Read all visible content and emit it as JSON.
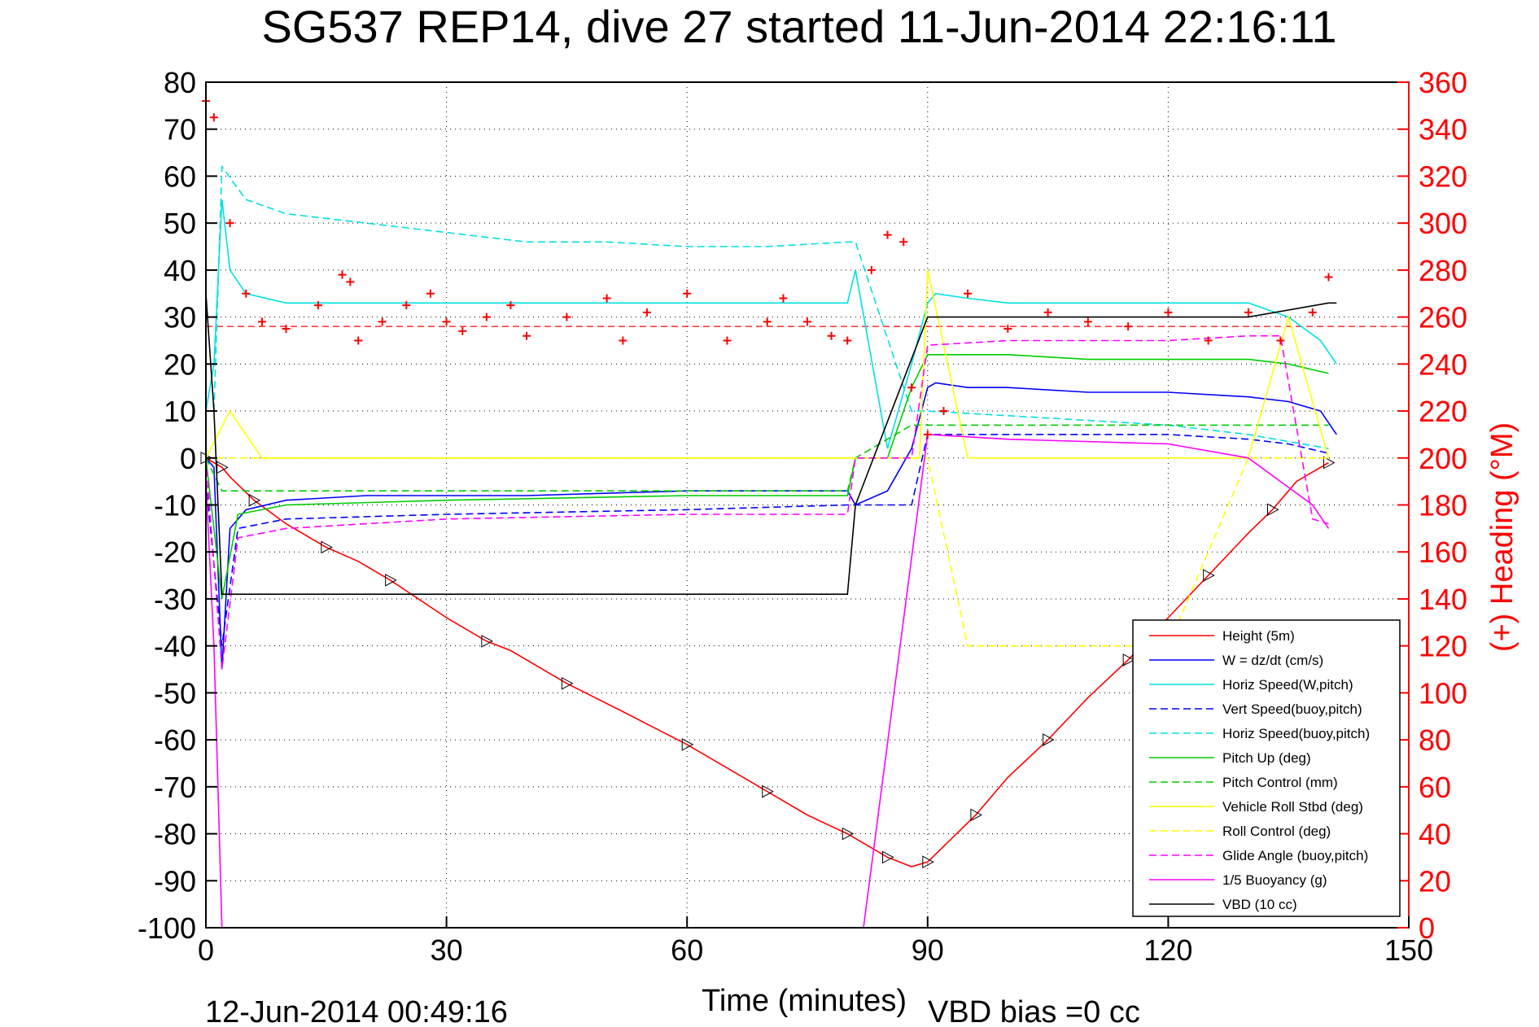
{
  "chart_data": {
    "type": "line",
    "title": "SG537 REP14, dive 27 started 11-Jun-2014 22:16:11",
    "xlabel": "Time (minutes)",
    "ylabel_right": "(+) Heading (°M)",
    "end_time_label": "12-Jun-2014 00:49:16",
    "vbd_bias_label": "VBD bias =0 cc",
    "xlim": [
      0,
      150
    ],
    "ylim": [
      -100,
      80
    ],
    "y2lim": [
      0,
      360
    ],
    "x_ticks": [
      0,
      30,
      60,
      90,
      120,
      150
    ],
    "y_ticks": [
      -100,
      -90,
      -80,
      -70,
      -60,
      -50,
      -40,
      -30,
      -20,
      -10,
      0,
      10,
      20,
      30,
      40,
      50,
      60,
      70,
      80
    ],
    "y2_ticks": [
      0,
      20,
      40,
      60,
      80,
      100,
      120,
      140,
      160,
      180,
      200,
      220,
      240,
      260,
      280,
      300,
      320,
      340,
      360
    ],
    "grid": true,
    "legend_position": "bottom-right",
    "colors": {
      "heading": "#ff0000",
      "right_axis": "#ff0000",
      "grid": "#000000"
    },
    "heading_reference_left_units": 28,
    "series": [
      {
        "name": "Height (5m)",
        "color": "#ff0000",
        "style": "solid",
        "x": [
          0,
          1,
          2,
          3,
          6,
          10,
          15,
          19,
          23,
          30,
          35,
          38,
          45,
          52,
          60,
          65,
          70,
          75,
          80,
          82,
          85,
          88,
          90,
          93,
          96,
          100,
          105,
          110,
          115,
          120,
          125,
          130,
          133,
          136,
          140
        ],
        "values": [
          0,
          -1,
          -2,
          -4,
          -9,
          -14,
          -19,
          -22,
          -26,
          -34,
          -39,
          -41,
          -48,
          -54,
          -61,
          -66,
          -71,
          -76,
          -80,
          -82,
          -85,
          -87,
          -86,
          -81,
          -76,
          -68,
          -60,
          -51,
          -43,
          -34,
          -25,
          -16,
          -11,
          -5,
          -1
        ]
      },
      {
        "name": "W = dz/dt (cm/s)",
        "color": "#0000ff",
        "style": "solid",
        "x": [
          0,
          1,
          2,
          3,
          5,
          10,
          20,
          40,
          60,
          80,
          81,
          85,
          88,
          90,
          91,
          95,
          100,
          110,
          120,
          130,
          135,
          139,
          141
        ],
        "values": [
          0,
          -2,
          -45,
          -15,
          -11,
          -9,
          -8,
          -8,
          -7,
          -7,
          -10,
          -7,
          2,
          15,
          16,
          15,
          15,
          14,
          14,
          13,
          12,
          10,
          5
        ]
      },
      {
        "name": "Horiz Speed(W,pitch)",
        "color": "#00e0e0",
        "style": "solid",
        "x": [
          0,
          1,
          2,
          3,
          5,
          10,
          20,
          40,
          60,
          80,
          81,
          85,
          88,
          90,
          91,
          95,
          100,
          110,
          120,
          130,
          135,
          139,
          141
        ],
        "values": [
          10,
          20,
          55,
          40,
          35,
          33,
          33,
          33,
          33,
          33,
          40,
          2,
          20,
          33,
          35,
          34,
          33,
          33,
          33,
          33,
          30,
          25,
          20
        ]
      },
      {
        "name": "Vert Speed(buoy,pitch)",
        "color": "#0000ff",
        "style": "dashed",
        "x": [
          0,
          2,
          4,
          10,
          30,
          60,
          80,
          81,
          88,
          90,
          100,
          120,
          130,
          135,
          140
        ],
        "values": [
          -5,
          -40,
          -15,
          -13,
          -12,
          -11,
          -10,
          -10,
          -10,
          5,
          5,
          5,
          4,
          3,
          1
        ]
      },
      {
        "name": "Horiz Speed(buoy,pitch)",
        "color": "#00e0e0",
        "style": "dashed",
        "x": [
          1,
          2,
          5,
          10,
          20,
          30,
          40,
          50,
          60,
          70,
          80,
          81,
          88,
          90,
          100,
          110,
          120,
          130,
          140
        ],
        "values": [
          10,
          62,
          55,
          52,
          50,
          48,
          46,
          46,
          45,
          45,
          46,
          46,
          10,
          10,
          9,
          8,
          7,
          5,
          2
        ]
      },
      {
        "name": "Pitch Up (deg)",
        "color": "#00cc00",
        "style": "solid",
        "x": [
          0,
          2,
          4,
          10,
          30,
          60,
          80,
          81,
          85,
          88,
          90,
          100,
          110,
          120,
          130,
          135,
          140
        ],
        "values": [
          0,
          -30,
          -12,
          -10,
          -9,
          -8,
          -8,
          0,
          0,
          15,
          22,
          22,
          21,
          21,
          21,
          20,
          18
        ]
      },
      {
        "name": "Pitch Control (mm)",
        "color": "#00cc00",
        "style": "dashed",
        "x": [
          0,
          2,
          4,
          80,
          81,
          88,
          90,
          140
        ],
        "values": [
          0,
          -7,
          -7,
          -7,
          0,
          7,
          7,
          7
        ]
      },
      {
        "name": "Vehicle Roll Stbd (deg)",
        "color": "#ffff00",
        "style": "solid",
        "x": [
          0,
          3,
          7,
          15,
          30,
          45,
          60,
          75,
          89,
          90,
          95,
          100,
          110,
          120,
          130,
          135,
          140
        ],
        "values": [
          0,
          10,
          0,
          0,
          0,
          0,
          0,
          0,
          0,
          40,
          0,
          0,
          0,
          0,
          0,
          30,
          0
        ]
      },
      {
        "name": "Roll Control (deg)",
        "color": "#ffff00",
        "style": "dashed",
        "x": [
          0,
          10,
          30,
          60,
          89,
          90,
          95,
          100,
          110,
          120,
          130,
          140
        ],
        "values": [
          0,
          0,
          0,
          0,
          0,
          0,
          -40,
          -40,
          -40,
          -40,
          0,
          0
        ]
      },
      {
        "name": "Glide Angle (buoy,pitch)",
        "color": "#ff00ff",
        "style": "dashed",
        "x": [
          0,
          2,
          4,
          10,
          30,
          60,
          80,
          81,
          88,
          90,
          100,
          120,
          130,
          134,
          138,
          140
        ],
        "values": [
          0,
          -45,
          -17,
          -15,
          -13,
          -12,
          -12,
          0,
          0,
          24,
          25,
          25,
          26,
          26,
          -13,
          -14
        ]
      },
      {
        "name": "1/5 Buoyancy (g)",
        "color": "#ff00ff",
        "style": "solid",
        "x": [
          0,
          1,
          2,
          80,
          81,
          82,
          90,
          100,
          120,
          130,
          134,
          138,
          140
        ],
        "values": [
          -5,
          -40,
          -100,
          -100,
          -100,
          -100,
          5,
          4,
          3,
          0,
          -5,
          -10,
          -15
        ]
      },
      {
        "name": "VBD (10 cc)",
        "color": "#000000",
        "style": "solid",
        "x": [
          0,
          1,
          2,
          3,
          10,
          30,
          60,
          80,
          81,
          90,
          91,
          110,
          130,
          140,
          141
        ],
        "values": [
          35,
          10,
          -29,
          -29,
          -29,
          -29,
          -29,
          -29,
          -10,
          30,
          30,
          30,
          30,
          33,
          33
        ]
      },
      {
        "name": "(+) Heading (°M)",
        "axis": "right",
        "color": "#ff0000",
        "style": "markers",
        "x": [
          0,
          1,
          3,
          5,
          7,
          10,
          14,
          17,
          18,
          19,
          22,
          25,
          28,
          30,
          32,
          35,
          38,
          40,
          45,
          50,
          52,
          55,
          60,
          65,
          70,
          72,
          75,
          78,
          80,
          83,
          85,
          87,
          88,
          90,
          92,
          95,
          100,
          105,
          110,
          115,
          120,
          125,
          130,
          134,
          138,
          140
        ],
        "values": [
          352,
          345,
          300,
          270,
          258,
          255,
          265,
          278,
          275,
          250,
          258,
          265,
          270,
          258,
          254,
          260,
          265,
          252,
          260,
          268,
          250,
          262,
          270,
          250,
          258,
          268,
          258,
          252,
          250,
          280,
          295,
          292,
          230,
          210,
          220,
          270,
          255,
          262,
          258,
          256,
          262,
          250,
          262,
          250,
          262,
          277
        ]
      }
    ],
    "legend": [
      "Height (5m)",
      "W = dz/dt (cm/s)",
      "Horiz Speed(W,pitch)",
      "Vert Speed(buoy,pitch)",
      "Horiz Speed(buoy,pitch)",
      "Pitch Up (deg)",
      "Pitch Control (mm)",
      "Vehicle Roll Stbd (deg)",
      "Roll Control (deg)",
      "Glide Angle (buoy,pitch)",
      "1/5 Buoyancy (g)",
      "VBD (10 cc)"
    ]
  }
}
